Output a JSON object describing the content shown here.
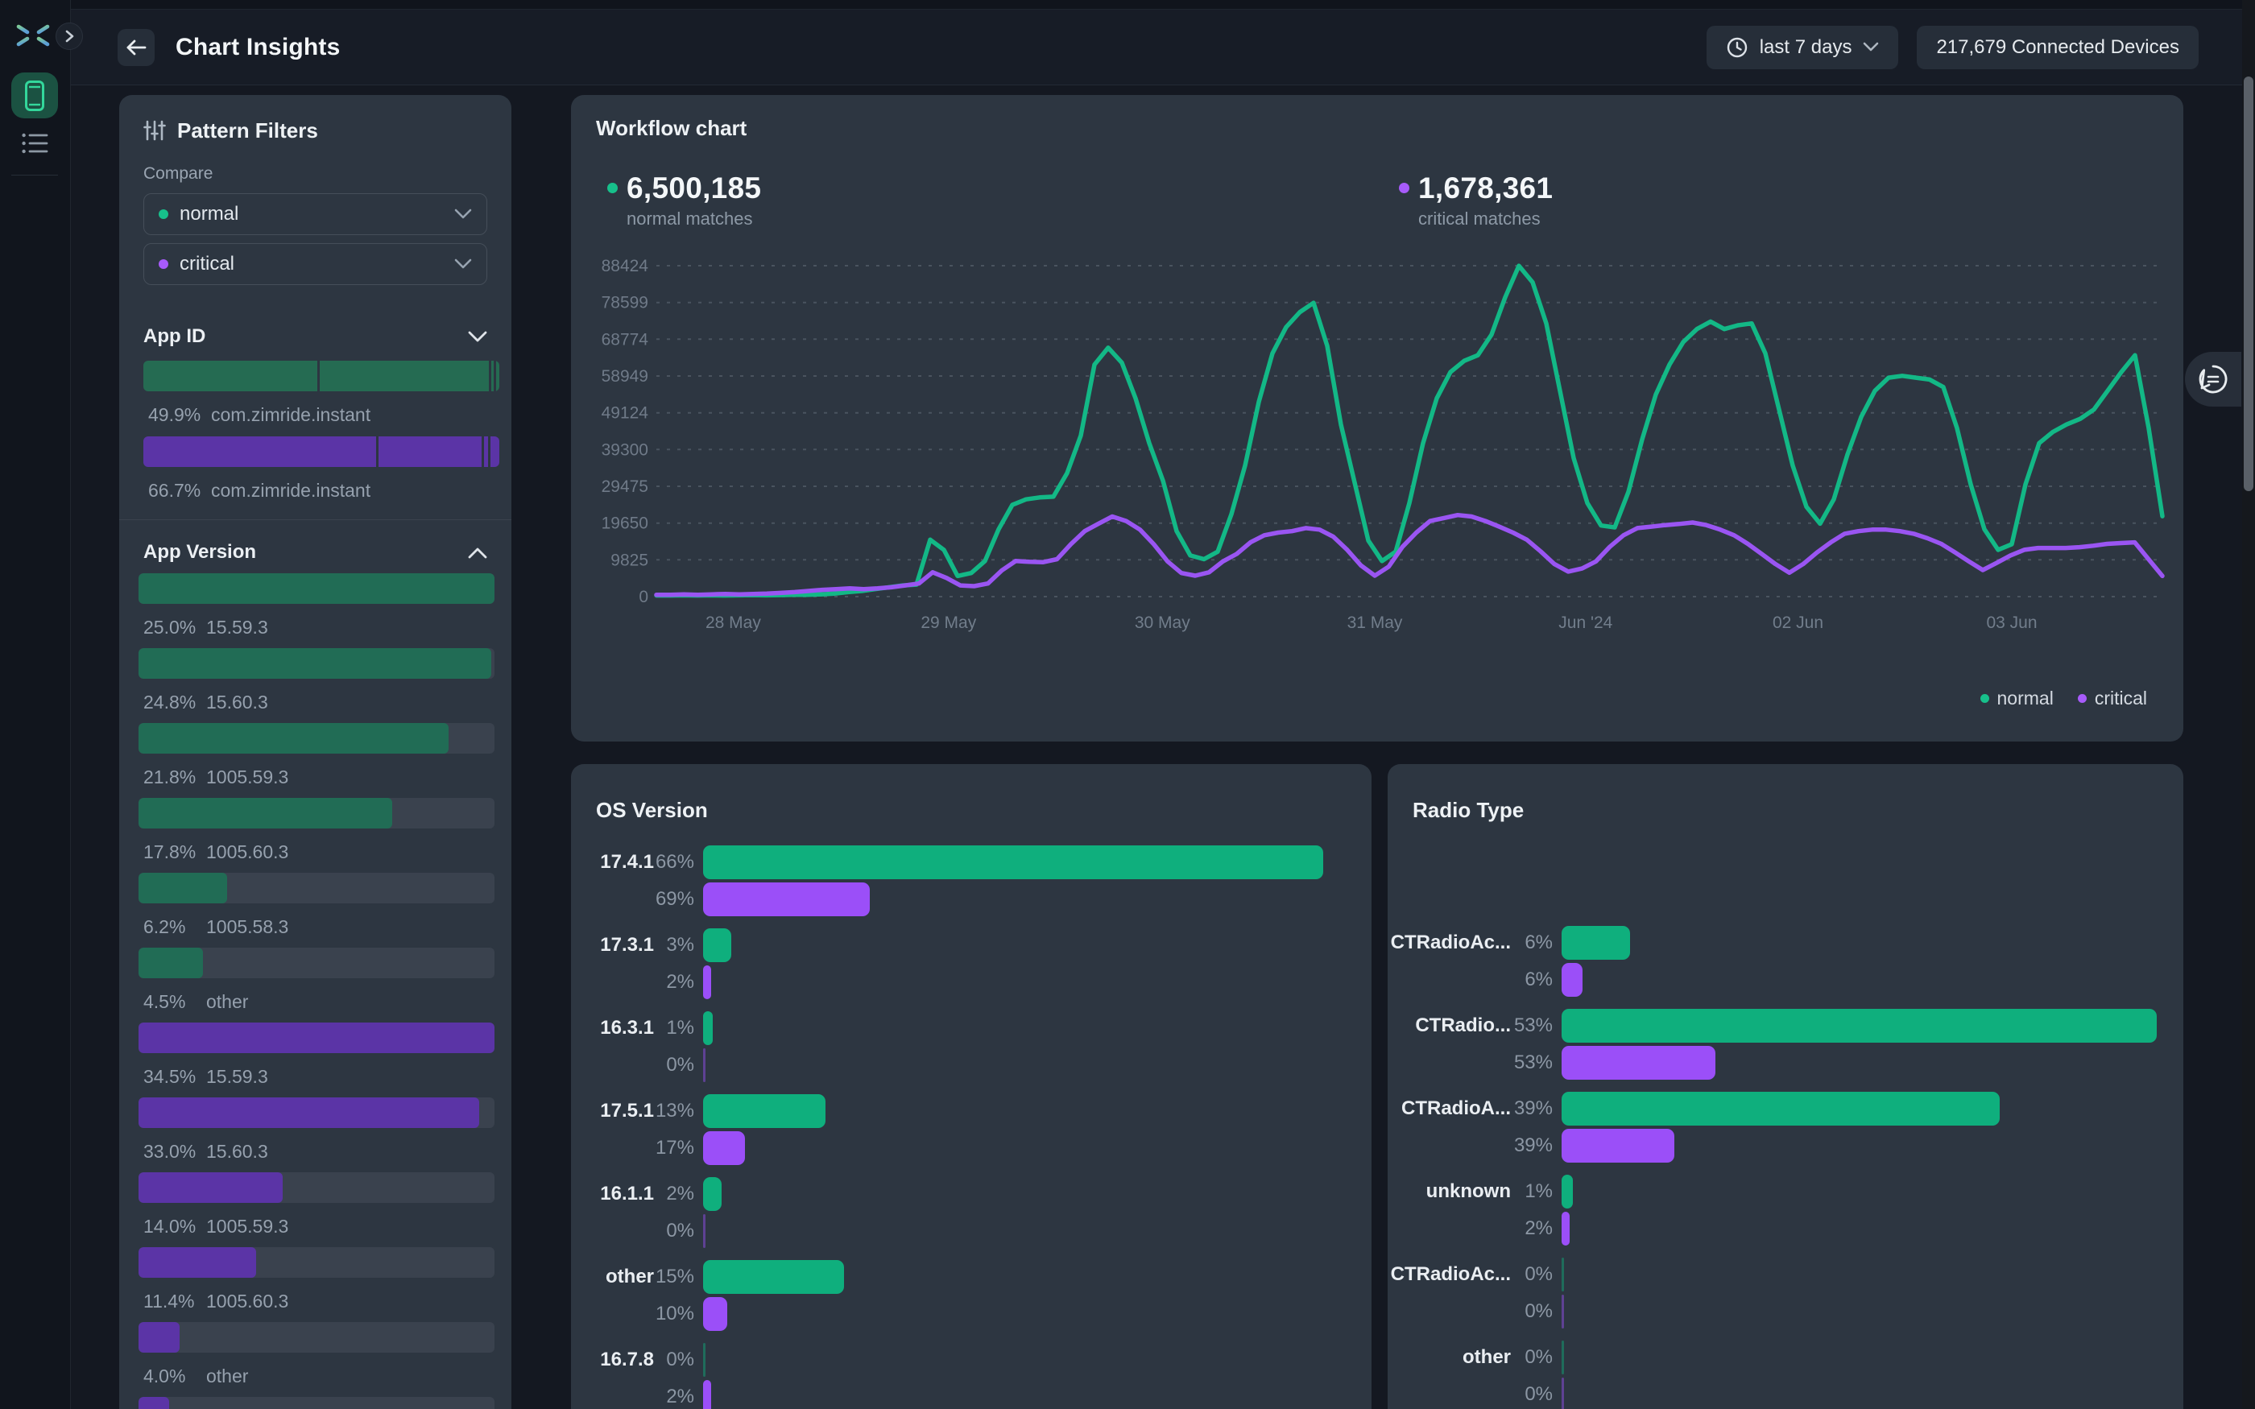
{
  "topbar": {
    "title": "Chart Insights",
    "time_range_label": "last 7 days",
    "devices_label": "217,679 Connected Devices"
  },
  "icons": [
    "logo-starburst-icon",
    "chevron-right-icon",
    "phone-device-icon",
    "list-view-icon",
    "back-arrow-icon",
    "clock-icon",
    "chevron-down-icon",
    "chevron-up-icon",
    "sliders-icon",
    "chat-bubble-icon"
  ],
  "colors": {
    "page_bg": "#141821",
    "rail_bg": "#11151D",
    "topbar_bg": "#171C26",
    "card_bg": "#2D3641",
    "track": "#3A424E",
    "normal_bright": "#0FAF7D",
    "critical_bright": "#9B4FF8",
    "normal_dark": "#216C55",
    "critical_dark": "#5B34A6",
    "text_muted": "#96A1AE"
  },
  "filters": {
    "title": "Pattern Filters",
    "compare_label": "Compare",
    "compare_selects": [
      {
        "value": "normal",
        "series": "normal"
      },
      {
        "value": "critical",
        "series": "critical"
      }
    ],
    "app_id": {
      "title": "App ID",
      "collapsed_chevron": "down",
      "bars": [
        {
          "series": "normal",
          "segments": [
            49.9,
            48.4,
            0.7,
            1.0
          ],
          "pct": "49.9%",
          "name": "com.zimride.instant"
        },
        {
          "series": "critical",
          "segments": [
            66.7,
            29.6,
            1.2,
            2.5
          ],
          "pct": "66.7%",
          "name": "com.zimride.instant"
        }
      ]
    },
    "app_version": {
      "title": "App Version",
      "collapsed_chevron": "up",
      "rows": [
        {
          "pct": "25.0%",
          "name": "15.59.3",
          "series": "normal",
          "fill": 100
        },
        {
          "pct": "24.8%",
          "name": "15.60.3",
          "series": "normal",
          "fill": 99.2
        },
        {
          "pct": "21.8%",
          "name": "1005.59.3",
          "series": "normal",
          "fill": 87.2
        },
        {
          "pct": "17.8%",
          "name": "1005.60.3",
          "series": "normal",
          "fill": 71.2
        },
        {
          "pct": "6.2%",
          "name": "1005.58.3",
          "series": "normal",
          "fill": 24.8
        },
        {
          "pct": "4.5%",
          "name": "other",
          "series": "normal",
          "fill": 18
        },
        {
          "pct": "34.5%",
          "name": "15.59.3",
          "series": "critical",
          "fill": 100
        },
        {
          "pct": "33.0%",
          "name": "15.60.3",
          "series": "critical",
          "fill": 95.7
        },
        {
          "pct": "14.0%",
          "name": "1005.59.3",
          "series": "critical",
          "fill": 40.6
        },
        {
          "pct": "11.4%",
          "name": "1005.60.3",
          "series": "critical",
          "fill": 33
        },
        {
          "pct": "4.0%",
          "name": "other",
          "series": "critical",
          "fill": 11.6
        },
        {
          "pct": "",
          "name": "",
          "series": "critical",
          "fill": 8.6
        }
      ]
    }
  },
  "workflow": {
    "title": "Workflow chart",
    "stats": [
      {
        "value": "6,500,185",
        "caption": "normal matches",
        "series": "normal"
      },
      {
        "value": "1,678,361",
        "caption": "critical matches",
        "series": "critical"
      }
    ],
    "legend": [
      {
        "label": "normal",
        "series": "normal"
      },
      {
        "label": "critical",
        "series": "critical"
      }
    ]
  },
  "chart_data": [
    {
      "type": "line",
      "title": "Workflow chart",
      "ylim": [
        0,
        88424
      ],
      "yticks": [
        0,
        9825,
        19650,
        29475,
        39300,
        49124,
        58949,
        68774,
        78599,
        88424
      ],
      "xticks": [
        {
          "label": "28 May",
          "f": 0.051
        },
        {
          "label": "29 May",
          "f": 0.194
        },
        {
          "label": "30 May",
          "f": 0.336
        },
        {
          "label": "31 May",
          "f": 0.477
        },
        {
          "label": "Jun '24",
          "f": 0.617
        },
        {
          "label": "02 Jun",
          "f": 0.758
        },
        {
          "label": "03 Jun",
          "f": 0.9
        }
      ],
      "grid": "dashed-horizontal",
      "legend_position": "bottom-right",
      "series": [
        {
          "name": "normal",
          "color": "#13B886",
          "total": "6,500,185",
          "values": [
            300,
            300,
            350,
            300,
            350,
            300,
            350,
            400,
            350,
            400,
            500,
            500,
            600,
            800,
            1200,
            1500,
            2000,
            2500,
            3000,
            3200,
            15200,
            12500,
            5500,
            6300,
            9500,
            18000,
            24500,
            26000,
            26500,
            26700,
            33000,
            43000,
            62000,
            66500,
            62500,
            53000,
            41000,
            31000,
            17500,
            11000,
            10000,
            12000,
            22000,
            35000,
            52000,
            65000,
            72000,
            76000,
            78500,
            67000,
            46000,
            30500,
            15000,
            9500,
            12000,
            25000,
            41000,
            53000,
            60000,
            63000,
            64500,
            70000,
            80000,
            88400,
            84000,
            73000,
            55000,
            37000,
            25000,
            19000,
            18500,
            28000,
            42000,
            54000,
            62000,
            68000,
            71500,
            73500,
            71500,
            72500,
            73000,
            65000,
            50000,
            35000,
            24000,
            19500,
            26000,
            38000,
            48000,
            55000,
            58500,
            59000,
            58500,
            58000,
            56000,
            45000,
            30000,
            18000,
            12500,
            14000,
            30000,
            41000,
            44000,
            46000,
            47500,
            50000,
            55000,
            60000,
            64500,
            45000,
            21500
          ]
        },
        {
          "name": "critical",
          "color": "#9A55F2",
          "total": "1,678,361",
          "values": [
            500,
            500,
            600,
            500,
            600,
            700,
            600,
            700,
            800,
            1000,
            1200,
            1500,
            1800,
            2000,
            2200,
            2000,
            2200,
            2500,
            3000,
            3500,
            6500,
            5000,
            3000,
            2800,
            3500,
            7000,
            9500,
            9300,
            9200,
            10000,
            14000,
            17500,
            19500,
            21400,
            20200,
            17900,
            14000,
            9400,
            6300,
            5600,
            6500,
            9400,
            11400,
            14500,
            16400,
            17100,
            17500,
            18300,
            17900,
            16000,
            12500,
            8300,
            5600,
            8000,
            13300,
            17100,
            20200,
            21000,
            21800,
            21400,
            20200,
            18700,
            17100,
            15200,
            12100,
            8700,
            6700,
            7500,
            9400,
            13300,
            16400,
            18300,
            18700,
            19100,
            19400,
            19800,
            19100,
            17900,
            16400,
            14100,
            11400,
            8700,
            6400,
            8700,
            11800,
            14500,
            16800,
            17500,
            17900,
            17900,
            17500,
            16800,
            15600,
            14100,
            11800,
            9400,
            7100,
            9000,
            11000,
            12500,
            13000,
            13000,
            13000,
            13200,
            13600,
            14100,
            14300,
            14500,
            10000,
            5500
          ]
        }
      ]
    },
    {
      "type": "bar",
      "title": "OS Version",
      "orientation": "horizontal",
      "categories": [
        "17.4.1",
        "17.3.1",
        "16.3.1",
        "17.5.1",
        "16.1.1",
        "other",
        "16.7.8"
      ],
      "series": [
        {
          "name": "normal",
          "color": "#0FAF7D",
          "pct_labels": [
            "66%",
            "3%",
            "1%",
            "13%",
            "2%",
            "15%",
            "0%"
          ],
          "bar_fractions": [
            100,
            4.5,
            1.5,
            19.8,
            3.0,
            22.7,
            0
          ]
        },
        {
          "name": "critical",
          "color": "#9B4FF8",
          "pct_labels": [
            "69%",
            "2%",
            "0%",
            "17%",
            "0%",
            "10%",
            "2%"
          ],
          "bar_fractions": [
            26.9,
            0.9,
            0,
            6.7,
            0,
            3.9,
            0.9
          ]
        }
      ]
    },
    {
      "type": "bar",
      "title": "Radio Type",
      "orientation": "horizontal",
      "categories": [
        "CTRadioAc...",
        "CTRadio...",
        "CTRadioA...",
        "unknown",
        "CTRadioAc...",
        "other"
      ],
      "series": [
        {
          "name": "normal",
          "color": "#0FAF7D",
          "pct_labels": [
            "6%",
            "53%",
            "39%",
            "1%",
            "0%",
            "0%"
          ],
          "bar_fractions": [
            11.5,
            100,
            73.6,
            1.9,
            0,
            0
          ]
        },
        {
          "name": "critical",
          "color": "#9B4FF8",
          "pct_labels": [
            "6%",
            "53%",
            "39%",
            "2%",
            "0%",
            "0%"
          ],
          "bar_fractions": [
            3.5,
            25.8,
            19.0,
            1.0,
            0,
            0
          ]
        }
      ]
    }
  ]
}
